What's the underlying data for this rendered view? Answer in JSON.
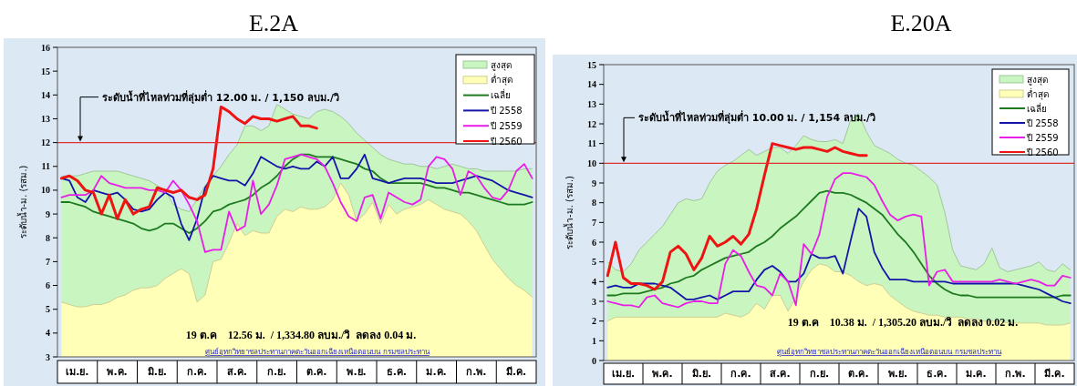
{
  "chart_data": [
    {
      "type": "line",
      "title": "E.2A",
      "ylabel": "ระดับน้ำ-ม. (รสม.)",
      "categories": [
        null,
        null,
        "เม.ย.",
        null,
        null,
        null,
        null,
        "พ.ค.",
        null,
        null,
        null,
        null,
        "มิ.ย.",
        null,
        null,
        null,
        null,
        "ก.ค.",
        null,
        null,
        null,
        null,
        "ส.ค.",
        null,
        null,
        null,
        null,
        "ก.ย.",
        null,
        null,
        null,
        null,
        "ต.ค.",
        null,
        null,
        null,
        null,
        "พ.ย.",
        null,
        null,
        null,
        null,
        "ธ.ค.",
        null,
        null,
        null,
        null,
        "ม.ค.",
        null,
        null,
        null,
        null,
        "ก.พ.",
        null,
        null,
        null,
        null,
        "มี.ค.",
        null,
        null
      ],
      "ylim": [
        3,
        16
      ],
      "yticks": [
        3,
        4,
        5,
        6,
        7,
        8,
        9,
        10,
        11,
        12,
        13,
        14,
        15,
        16
      ],
      "legend": "top right",
      "series": [
        {
          "name": "สูงสุด",
          "type": "area",
          "color": "#c8f5c0",
          "values": [
            10.6,
            10.6,
            10.6,
            10.7,
            10.8,
            10.8,
            10.8,
            10.8,
            10.7,
            10.6,
            10.5,
            10.4,
            10.2,
            10.0,
            9.4,
            9.2,
            9.1,
            9.6,
            10.2,
            10.6,
            11.0,
            11.5,
            11.9,
            12.7,
            12.7,
            12.5,
            12.7,
            13.6,
            13.4,
            13.2,
            13.1,
            13.0,
            13.3,
            13.4,
            13.3,
            13.1,
            12.8,
            12.4,
            12.1,
            11.8,
            11.5,
            11.3,
            11.2,
            11.1,
            11.1,
            11.0,
            11.0,
            10.9,
            11.0,
            11.1,
            11.0,
            10.9,
            10.9,
            10.8,
            10.8,
            10.8,
            10.8,
            10.8,
            10.9,
            10.9
          ]
        },
        {
          "name": "ต่ำสุด",
          "type": "area",
          "color": "#ffffb8",
          "values": [
            5.3,
            5.2,
            5.1,
            5.1,
            5.2,
            5.2,
            5.3,
            5.5,
            5.6,
            5.8,
            5.9,
            5.9,
            6.0,
            6.3,
            6.5,
            6.7,
            6.5,
            5.3,
            5.6,
            7.0,
            7.1,
            7.8,
            8.6,
            8.1,
            8.3,
            8.2,
            8.2,
            8.9,
            9.2,
            9.1,
            9.3,
            9.2,
            9.2,
            9.3,
            9.6,
            10.3,
            9.8,
            8.7,
            9.0,
            9.5,
            8.6,
            9.4,
            9.0,
            9.2,
            9.3,
            9.4,
            9.6,
            9.4,
            9.2,
            9.1,
            9.0,
            8.7,
            8.3,
            7.7,
            7.1,
            6.7,
            6.3,
            6.0,
            5.8,
            5.5
          ]
        },
        {
          "name": "เฉลี่ย",
          "type": "line",
          "color": "#1e7a1e",
          "values": [
            9.5,
            9.5,
            9.4,
            9.3,
            9.1,
            9.0,
            8.9,
            8.8,
            8.7,
            8.6,
            8.4,
            8.3,
            8.4,
            8.6,
            8.6,
            8.4,
            8.2,
            8.4,
            8.7,
            9.1,
            9.2,
            9.4,
            9.5,
            9.6,
            9.8,
            10.1,
            10.3,
            10.6,
            11.0,
            11.3,
            11.5,
            11.5,
            11.4,
            11.4,
            11.4,
            11.3,
            11.2,
            11.1,
            10.9,
            10.8,
            10.5,
            10.3,
            10.3,
            10.3,
            10.3,
            10.3,
            10.2,
            10.1,
            10.1,
            10.0,
            9.9,
            9.9,
            9.8,
            9.7,
            9.6,
            9.5,
            9.4,
            9.4,
            9.4,
            9.5
          ]
        },
        {
          "name": "ปี 2558",
          "type": "line",
          "color": "#1414a8",
          "values": [
            10.5,
            10.4,
            9.7,
            9.5,
            10.0,
            9.9,
            9.8,
            9.9,
            9.6,
            9.2,
            9.1,
            9.2,
            9.6,
            9.9,
            9.7,
            8.6,
            7.9,
            8.8,
            10.1,
            10.6,
            10.5,
            10.4,
            10.4,
            10.2,
            10.7,
            11.4,
            11.2,
            11.0,
            10.9,
            11.0,
            10.9,
            10.9,
            11.2,
            11.0,
            11.4,
            10.5,
            10.5,
            10.9,
            11.5,
            10.5,
            10.4,
            10.3,
            10.4,
            10.5,
            10.5,
            10.5,
            10.4,
            10.3,
            10.3,
            10.3,
            10.4,
            10.5,
            10.6,
            10.5,
            10.4,
            10.2,
            10.0,
            9.9,
            9.8,
            9.7
          ]
        },
        {
          "name": "ปี 2559",
          "type": "line",
          "color": "#e81ee8",
          "values": [
            9.7,
            9.8,
            9.8,
            9.8,
            10.0,
            10.6,
            10.3,
            10.2,
            10.1,
            10.1,
            10.1,
            10.0,
            10.0,
            9.9,
            10.4,
            10.0,
            9.4,
            8.7,
            7.4,
            7.5,
            7.5,
            9.1,
            8.3,
            8.5,
            10.4,
            9.0,
            9.4,
            10.2,
            11.3,
            11.4,
            11.5,
            11.4,
            11.3,
            11.0,
            10.3,
            9.5,
            8.9,
            8.7,
            9.7,
            9.8,
            8.8,
            9.9,
            9.7,
            9.5,
            9.4,
            9.6,
            11.0,
            11.4,
            11.3,
            10.9,
            9.8,
            10.8,
            10.6,
            10.1,
            9.7,
            9.6,
            10.0,
            10.8,
            11.1,
            10.5
          ]
        },
        {
          "name": "ปี 2560",
          "type": "line",
          "color": "#ee1414",
          "values": [
            10.5,
            10.6,
            10.4,
            10.0,
            9.9,
            9.0,
            9.8,
            8.8,
            9.6,
            9.0,
            9.2,
            9.3,
            10.1,
            10.0,
            9.9,
            10.0,
            9.7,
            9.6,
            9.8,
            10.9,
            13.5,
            13.3,
            13.0,
            12.8,
            13.1,
            13.0,
            13.0,
            12.9,
            13.0,
            13.1,
            12.7,
            12.7,
            12.6,
            null,
            null,
            null,
            null,
            null,
            null,
            null,
            null,
            null,
            null,
            null,
            null,
            null,
            null,
            null,
            null,
            null,
            null,
            null,
            null,
            null,
            null,
            null,
            null,
            null,
            null,
            null
          ]
        }
      ],
      "ref_lines": [
        {
          "axis": "y",
          "value": 12,
          "label": "ระดับน้ำที่ไหลท่วมที่ลุ่มต่ำ 12.00 ม. / 1,150  ลบม./วิ",
          "color": "#e03030"
        }
      ],
      "annotations": [
        "19 ต.ค    12.56 ม.  / 1,334.80 ลบม./วิ  ลดลง 0.04 ม.",
        "ศูนย์อุทกวิทยาชลประทานภาคตะวันออกเฉียงเหนือตอนบน  กรมชลประทาน"
      ]
    },
    {
      "type": "line",
      "title": "E.20A",
      "ylabel": "ระดับน้ำ-ม. (รสม.)",
      "categories": [
        null,
        null,
        "เม.ย.",
        null,
        null,
        null,
        null,
        "พ.ค.",
        null,
        null,
        null,
        null,
        "มิ.ย.",
        null,
        null,
        null,
        null,
        "ก.ค.",
        null,
        null,
        null,
        null,
        "ส.ค.",
        null,
        null,
        null,
        null,
        "ก.ย.",
        null,
        null,
        null,
        null,
        "ต.ค.",
        null,
        null,
        null,
        null,
        "พ.ย.",
        null,
        null,
        null,
        null,
        "ธ.ค.",
        null,
        null,
        null,
        null,
        "ม.ค.",
        null,
        null,
        null,
        null,
        "ก.พ.",
        null,
        null,
        null,
        null,
        "มี.ค.",
        null,
        null
      ],
      "ylim": [
        0,
        15
      ],
      "yticks": [
        0,
        1,
        2,
        3,
        4,
        5,
        6,
        7,
        8,
        9,
        10,
        11,
        12,
        13,
        14,
        15
      ],
      "legend": "top right",
      "series": [
        {
          "name": "สูงสุด",
          "type": "area",
          "color": "#c8f5c0",
          "values": [
            5.0,
            4.6,
            4.5,
            4.9,
            5.6,
            6.0,
            6.4,
            6.8,
            7.4,
            8.0,
            8.2,
            8.1,
            8.2,
            9.0,
            9.6,
            9.9,
            10.1,
            10.4,
            10.7,
            10.4,
            10.6,
            10.8,
            10.8,
            10.5,
            10.9,
            11.4,
            11.2,
            11.1,
            11.1,
            11.2,
            11.0,
            12.2,
            12.5,
            11.6,
            10.9,
            10.7,
            10.5,
            10.2,
            10.0,
            9.9,
            9.6,
            9.3,
            8.9,
            7.5,
            5.6,
            4.8,
            4.7,
            4.6,
            4.9,
            5.7,
            4.7,
            4.5,
            4.6,
            4.7,
            4.8,
            5.0,
            4.6,
            4.5,
            4.9,
            4.6
          ]
        },
        {
          "name": "ต่ำสุด",
          "type": "area",
          "color": "#ffffb8",
          "values": [
            2.0,
            2.2,
            2.2,
            2.2,
            2.2,
            2.2,
            2.2,
            2.2,
            2.2,
            2.2,
            2.2,
            2.2,
            2.2,
            2.2,
            2.2,
            2.4,
            2.3,
            2.2,
            2.4,
            2.9,
            2.6,
            3.3,
            3.3,
            2.5,
            3.2,
            4.0,
            4.6,
            4.9,
            4.8,
            4.5,
            4.5,
            4.3,
            4.0,
            3.8,
            3.9,
            3.8,
            3.3,
            3.0,
            2.7,
            2.5,
            2.4,
            2.3,
            2.3,
            2.2,
            2.2,
            2.2,
            2.1,
            2.1,
            2.0,
            2.0,
            2.0,
            1.9,
            1.9,
            1.9,
            1.9,
            1.9,
            1.8,
            1.8,
            1.8,
            1.9
          ]
        },
        {
          "name": "เฉลี่ย",
          "type": "line",
          "color": "#1e7a1e",
          "values": [
            3.3,
            3.3,
            3.4,
            3.4,
            3.4,
            3.5,
            3.6,
            3.7,
            3.9,
            4.0,
            4.2,
            4.3,
            4.6,
            4.8,
            5.0,
            5.2,
            5.3,
            5.4,
            5.5,
            5.8,
            6.0,
            6.3,
            6.7,
            7.0,
            7.3,
            7.7,
            8.1,
            8.5,
            8.6,
            8.5,
            8.5,
            8.4,
            8.2,
            8.0,
            7.7,
            7.4,
            6.9,
            6.4,
            6.0,
            5.5,
            4.9,
            4.3,
            3.9,
            3.6,
            3.4,
            3.3,
            3.3,
            3.2,
            3.2,
            3.2,
            3.2,
            3.2,
            3.2,
            3.2,
            3.2,
            3.2,
            3.2,
            3.2,
            3.3,
            3.3
          ]
        },
        {
          "name": "ปี 2558",
          "type": "line",
          "color": "#1414a8",
          "values": [
            3.7,
            3.8,
            3.7,
            3.7,
            3.9,
            3.9,
            3.9,
            3.8,
            3.7,
            3.4,
            3.1,
            3.1,
            3.2,
            3.3,
            3.1,
            3.3,
            3.5,
            3.5,
            3.5,
            4.1,
            4.6,
            4.8,
            4.5,
            4.0,
            4.0,
            4.4,
            5.4,
            5.2,
            5.2,
            5.3,
            4.4,
            6.1,
            7.7,
            7.3,
            5.5,
            4.7,
            4.1,
            4.1,
            4.1,
            4.0,
            4.0,
            4.0,
            4.0,
            4.0,
            3.9,
            3.9,
            3.9,
            3.9,
            3.9,
            3.9,
            3.9,
            3.9,
            3.9,
            3.8,
            3.7,
            3.6,
            3.4,
            3.2,
            3.0,
            2.9
          ]
        },
        {
          "name": "ปี 2559",
          "type": "line",
          "color": "#e81ee8",
          "values": [
            3.0,
            2.9,
            2.8,
            2.8,
            2.7,
            3.2,
            3.3,
            2.9,
            2.8,
            2.7,
            2.9,
            3.0,
            3.0,
            2.9,
            2.9,
            4.9,
            5.6,
            5.3,
            4.5,
            3.8,
            3.7,
            3.3,
            4.4,
            4.0,
            2.8,
            5.9,
            5.4,
            6.4,
            8.3,
            9.2,
            9.5,
            9.5,
            9.4,
            9.3,
            8.9,
            8.1,
            7.4,
            7.1,
            7.3,
            7.4,
            7.3,
            3.8,
            4.5,
            4.6,
            4.0,
            4.0,
            4.0,
            4.0,
            4.0,
            4.0,
            4.1,
            4.0,
            3.9,
            4.0,
            4.1,
            4.0,
            3.8,
            3.8,
            4.3,
            4.2
          ]
        },
        {
          "name": "ปี 2560",
          "type": "line",
          "color": "#ee1414",
          "values": [
            4.3,
            6.0,
            4.2,
            3.9,
            3.9,
            3.8,
            3.6,
            4.0,
            5.5,
            5.8,
            5.4,
            4.6,
            5.2,
            6.3,
            5.8,
            6.0,
            6.3,
            5.9,
            6.4,
            7.7,
            9.4,
            11.0,
            10.9,
            10.8,
            10.7,
            10.8,
            10.8,
            10.7,
            10.6,
            10.8,
            10.6,
            10.5,
            10.4,
            10.4,
            null,
            null,
            null,
            null,
            null,
            null,
            null,
            null,
            null,
            null,
            null,
            null,
            null,
            null,
            null,
            null,
            null,
            null,
            null,
            null,
            null,
            null,
            null,
            null,
            null,
            null
          ]
        }
      ],
      "ref_lines": [
        {
          "axis": "y",
          "value": 10,
          "label": "ระดับน้ำที่ไหลท่วมที่ลุ่มต่ำ 10.00 ม. / 1,154 ลบม./วิ",
          "color": "#e03030"
        }
      ],
      "annotations": [
        "19 ต.ค    10.38 ม.  / 1,305.20 ลบม./วิ  ลดลง 0.02 ม.",
        "ศูนย์อุทกวิทยาชลประทานภาคตะวันออกเฉียงเหนือตอนบน  กรมชลประทาน"
      ]
    }
  ]
}
